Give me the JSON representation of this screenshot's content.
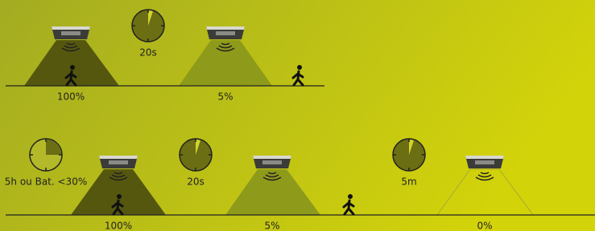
{
  "row1": {
    "timer": "20s",
    "levels": [
      "100%",
      "5%"
    ]
  },
  "row2": {
    "start_timer": "5h ou Bat. <30%",
    "timer1": "20s",
    "timer2": "5m",
    "levels": [
      "100%",
      "5%",
      "0%"
    ]
  }
}
